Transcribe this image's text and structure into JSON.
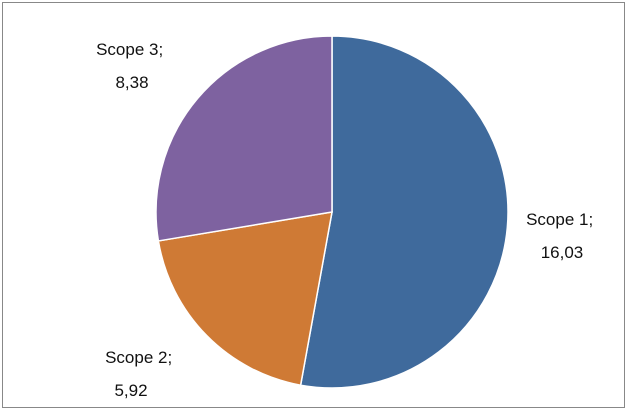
{
  "chart_data": {
    "type": "pie",
    "categories": [
      "Scope 1",
      "Scope 2",
      "Scope 3"
    ],
    "values": [
      16.03,
      5.92,
      8.38
    ],
    "labels": [
      {
        "name": "Scope 1;",
        "value": "16,03"
      },
      {
        "name": "Scope 2;",
        "value": "5,92"
      },
      {
        "name": "Scope 3;",
        "value": "8,38"
      }
    ],
    "colors": [
      "#3F6A9C",
      "#CF7A35",
      "#7E62A0"
    ],
    "slice_border_color": "#FFFFFF",
    "start_angle_degrees": 0,
    "direction": "clockwise",
    "legend": "none",
    "data_labels": "outside"
  }
}
